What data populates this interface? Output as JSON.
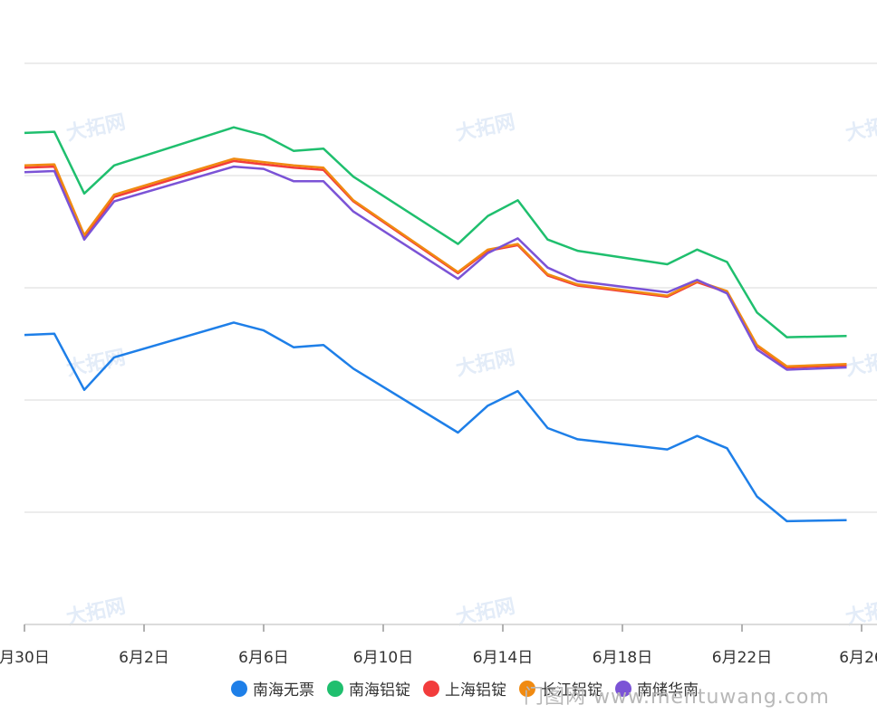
{
  "chart_data": {
    "type": "line",
    "title": "",
    "xlabel": "",
    "ylabel": "",
    "y_axis_labels_visible": false,
    "ylim": [
      0,
      5
    ],
    "x": [
      0.0,
      1.0,
      2.0,
      3.0,
      7.0,
      8.0,
      9.0,
      10.0,
      11.0,
      14.5,
      15.5,
      16.5,
      17.5,
      18.5,
      21.5,
      22.5,
      23.5,
      24.5,
      25.5,
      27.5
    ],
    "x_ticks": [
      {
        "x": 0,
        "label": "月30日"
      },
      {
        "x": 4,
        "label": "6月2日"
      },
      {
        "x": 8,
        "label": "6月6日"
      },
      {
        "x": 12,
        "label": "6月10日"
      },
      {
        "x": 16,
        "label": "6月14日"
      },
      {
        "x": 20,
        "label": "6月18日"
      },
      {
        "x": 24,
        "label": "6月22日"
      },
      {
        "x": 28,
        "label": "6月26"
      }
    ],
    "series": [
      {
        "name": "南海无票",
        "color": "#1e7fe8",
        "values": [
          2.58,
          2.59,
          2.09,
          2.38,
          2.69,
          2.62,
          2.47,
          2.49,
          2.28,
          1.71,
          1.95,
          2.08,
          1.75,
          1.65,
          1.56,
          1.68,
          1.57,
          1.14,
          0.92,
          0.93
        ]
      },
      {
        "name": "南海铝锭",
        "color": "#1fbf6e",
        "values": [
          4.38,
          4.39,
          3.84,
          4.09,
          4.43,
          4.36,
          4.22,
          4.24,
          3.99,
          3.39,
          3.64,
          3.78,
          3.43,
          3.33,
          3.21,
          3.34,
          3.23,
          2.78,
          2.56,
          2.57
        ]
      },
      {
        "name": "上海铝锭",
        "color": "#f23c3c",
        "values": [
          4.07,
          4.08,
          3.44,
          3.81,
          4.13,
          4.1,
          4.07,
          4.05,
          3.77,
          3.13,
          3.33,
          3.38,
          3.11,
          3.02,
          2.92,
          3.05,
          2.96,
          2.48,
          2.29,
          2.31
        ]
      },
      {
        "name": "长江铝锭",
        "color": "#f08a11",
        "values": [
          4.09,
          4.1,
          3.47,
          3.83,
          4.15,
          4.12,
          4.09,
          4.07,
          3.78,
          3.14,
          3.34,
          3.39,
          3.12,
          3.03,
          2.93,
          3.06,
          2.97,
          2.49,
          2.3,
          2.32
        ]
      },
      {
        "name": "南储华南",
        "color": "#7b53d6",
        "values": [
          4.03,
          4.04,
          3.43,
          3.77,
          4.08,
          4.06,
          3.95,
          3.95,
          3.68,
          3.08,
          3.31,
          3.44,
          3.18,
          3.06,
          2.96,
          3.07,
          2.95,
          2.45,
          2.27,
          2.29
        ]
      }
    ],
    "grid": true,
    "legend_position": "bottom-center"
  },
  "watermark_text": "大拓网",
  "footer_watermark": "门图网 www.mentuwang.com"
}
